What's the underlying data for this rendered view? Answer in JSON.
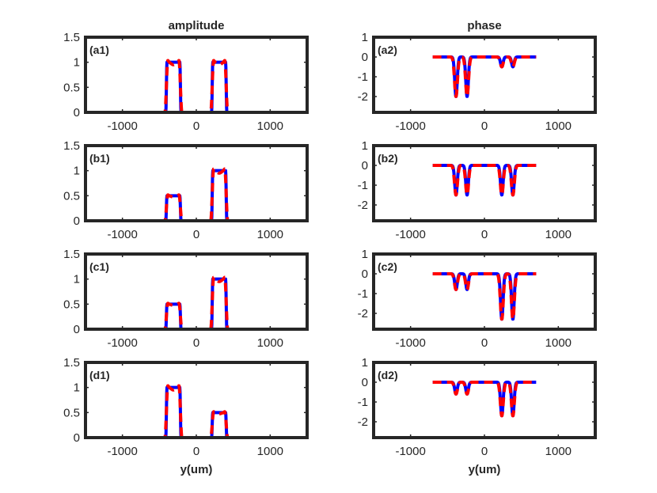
{
  "chart_data": {
    "type": "line",
    "column_titles": [
      "amplitude",
      "phase"
    ],
    "xlabel": "y(um)",
    "xlim": [
      -1500,
      1500
    ],
    "xticks": [
      -1000,
      0,
      1000
    ],
    "xtick_labels": [
      "-1000",
      "0",
      "1000"
    ],
    "amplitude_ylim": [
      0,
      1.5
    ],
    "amplitude_yticks": [
      0,
      0.5,
      1,
      1.5
    ],
    "amplitude_ytick_labels": [
      "0",
      "0.5",
      "1",
      "1.5"
    ],
    "phase_ylim": [
      -2.8,
      1
    ],
    "phase_yticks": [
      -2,
      -1,
      0,
      1
    ],
    "phase_ytick_labels": [
      "-2",
      "-1",
      "0",
      "1"
    ],
    "series_styles": [
      {
        "name": "blue-solid",
        "color": "#0000ff",
        "dash": "solid"
      },
      {
        "name": "red-dashed",
        "color": "#ff0000",
        "dash": "dashed"
      }
    ],
    "panels": [
      {
        "label": "(a1)",
        "kind": "amplitude",
        "slits": [
          {
            "center": -310,
            "width": 190,
            "amp": 1.0
          },
          {
            "center": 310,
            "width": 190,
            "amp": 1.0
          }
        ]
      },
      {
        "label": "(a2)",
        "kind": "phase",
        "dips": [
          {
            "center": -385,
            "depth": -2.0
          },
          {
            "center": -235,
            "depth": -2.0
          },
          {
            "center": 235,
            "depth": -0.5
          },
          {
            "center": 385,
            "depth": -0.5
          }
        ]
      },
      {
        "label": "(b1)",
        "kind": "amplitude",
        "slits": [
          {
            "center": -310,
            "width": 190,
            "amp": 0.5
          },
          {
            "center": 310,
            "width": 190,
            "amp": 1.0
          }
        ]
      },
      {
        "label": "(b2)",
        "kind": "phase",
        "dips": [
          {
            "center": -385,
            "depth": -1.5
          },
          {
            "center": -235,
            "depth": -1.5
          },
          {
            "center": 235,
            "depth": -1.5
          },
          {
            "center": 385,
            "depth": -1.5
          }
        ]
      },
      {
        "label": "(c1)",
        "kind": "amplitude",
        "slits": [
          {
            "center": -310,
            "width": 190,
            "amp": 0.5
          },
          {
            "center": 310,
            "width": 190,
            "amp": 1.0
          }
        ]
      },
      {
        "label": "(c2)",
        "kind": "phase",
        "dips": [
          {
            "center": -385,
            "depth": -0.8
          },
          {
            "center": -235,
            "depth": -0.8
          },
          {
            "center": 235,
            "depth": -2.3
          },
          {
            "center": 385,
            "depth": -2.3
          }
        ]
      },
      {
        "label": "(d1)",
        "kind": "amplitude",
        "slits": [
          {
            "center": -310,
            "width": 190,
            "amp": 1.0
          },
          {
            "center": 310,
            "width": 190,
            "amp": 0.5
          }
        ]
      },
      {
        "label": "(d2)",
        "kind": "phase",
        "dips": [
          {
            "center": -385,
            "depth": -0.6
          },
          {
            "center": -235,
            "depth": -0.6
          },
          {
            "center": 235,
            "depth": -1.7
          },
          {
            "center": 385,
            "depth": -1.7
          }
        ]
      }
    ],
    "data_extent": [
      -700,
      700
    ]
  }
}
